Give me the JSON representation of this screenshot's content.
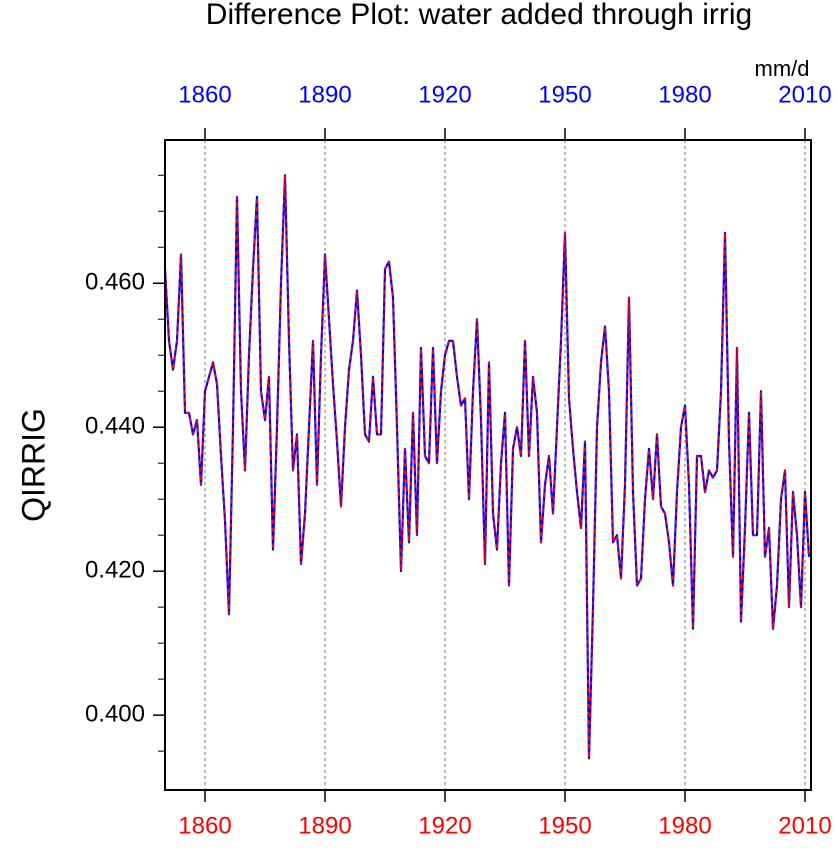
{
  "chart_data": {
    "type": "line",
    "title": "Difference Plot: water added through irrig",
    "units": "mm/d",
    "ylabel": "QIRRIG",
    "x": [
      1850,
      1851,
      1852,
      1853,
      1854,
      1855,
      1856,
      1857,
      1858,
      1859,
      1860,
      1861,
      1862,
      1863,
      1864,
      1865,
      1866,
      1867,
      1868,
      1869,
      1870,
      1871,
      1872,
      1873,
      1874,
      1875,
      1876,
      1877,
      1878,
      1879,
      1880,
      1881,
      1882,
      1883,
      1884,
      1885,
      1886,
      1887,
      1888,
      1889,
      1890,
      1891,
      1892,
      1893,
      1894,
      1895,
      1896,
      1897,
      1898,
      1899,
      1900,
      1901,
      1902,
      1903,
      1904,
      1905,
      1906,
      1907,
      1908,
      1909,
      1910,
      1911,
      1912,
      1913,
      1914,
      1915,
      1916,
      1917,
      1918,
      1919,
      1920,
      1921,
      1922,
      1923,
      1924,
      1925,
      1926,
      1927,
      1928,
      1929,
      1930,
      1931,
      1932,
      1933,
      1934,
      1935,
      1936,
      1937,
      1938,
      1939,
      1940,
      1941,
      1942,
      1943,
      1944,
      1945,
      1946,
      1947,
      1948,
      1949,
      1950,
      1951,
      1952,
      1953,
      1954,
      1955,
      1956,
      1957,
      1958,
      1959,
      1960,
      1961,
      1962,
      1963,
      1964,
      1965,
      1966,
      1967,
      1968,
      1969,
      1970,
      1971,
      1972,
      1973,
      1974,
      1975,
      1976,
      1977,
      1978,
      1979,
      1980,
      1981,
      1982,
      1983,
      1984,
      1985,
      1986,
      1987,
      1988,
      1989,
      1990,
      1991,
      1992,
      1993,
      1994,
      1995,
      1996,
      1997,
      1998,
      1999,
      2000,
      2001,
      2002,
      2003,
      2004,
      2005,
      2006,
      2007,
      2008,
      2009,
      2010,
      2011
    ],
    "series": [
      {
        "color": "#0000ff",
        "values": [
          0.462,
          0.452,
          0.448,
          0.452,
          0.464,
          0.442,
          0.442,
          0.439,
          0.441,
          0.432,
          0.445,
          0.447,
          0.449,
          0.446,
          0.436,
          0.427,
          0.414,
          0.44,
          0.472,
          0.445,
          0.434,
          0.45,
          0.462,
          0.472,
          0.445,
          0.441,
          0.447,
          0.423,
          0.44,
          0.46,
          0.475,
          0.452,
          0.434,
          0.439,
          0.421,
          0.428,
          0.44,
          0.452,
          0.432,
          0.45,
          0.464,
          0.455,
          0.446,
          0.438,
          0.429,
          0.44,
          0.448,
          0.452,
          0.459,
          0.45,
          0.439,
          0.438,
          0.447,
          0.439,
          0.439,
          0.462,
          0.463,
          0.458,
          0.44,
          0.42,
          0.437,
          0.424,
          0.442,
          0.425,
          0.451,
          0.436,
          0.435,
          0.451,
          0.435,
          0.445,
          0.45,
          0.452,
          0.452,
          0.447,
          0.443,
          0.444,
          0.43,
          0.445,
          0.455,
          0.441,
          0.421,
          0.449,
          0.428,
          0.423,
          0.435,
          0.442,
          0.418,
          0.437,
          0.44,
          0.436,
          0.452,
          0.436,
          0.447,
          0.442,
          0.424,
          0.432,
          0.436,
          0.428,
          0.44,
          0.452,
          0.467,
          0.444,
          0.437,
          0.431,
          0.426,
          0.438,
          0.394,
          0.415,
          0.44,
          0.449,
          0.454,
          0.445,
          0.424,
          0.425,
          0.419,
          0.432,
          0.458,
          0.431,
          0.418,
          0.419,
          0.43,
          0.437,
          0.43,
          0.439,
          0.429,
          0.428,
          0.424,
          0.418,
          0.431,
          0.44,
          0.443,
          0.432,
          0.412,
          0.436,
          0.436,
          0.431,
          0.434,
          0.433,
          0.434,
          0.445,
          0.467,
          0.438,
          0.422,
          0.451,
          0.413,
          0.426,
          0.442,
          0.425,
          0.425,
          0.445,
          0.422,
          0.426,
          0.412,
          0.418,
          0.43,
          0.434,
          0.415,
          0.431,
          0.425,
          0.415,
          0.431,
          0.422
        ]
      },
      {
        "color": "#ff0000",
        "dash": true,
        "values": [
          0.462,
          0.452,
          0.448,
          0.452,
          0.464,
          0.442,
          0.442,
          0.439,
          0.441,
          0.432,
          0.445,
          0.447,
          0.449,
          0.446,
          0.436,
          0.427,
          0.414,
          0.44,
          0.472,
          0.445,
          0.434,
          0.45,
          0.462,
          0.472,
          0.445,
          0.441,
          0.447,
          0.423,
          0.44,
          0.46,
          0.475,
          0.452,
          0.434,
          0.439,
          0.421,
          0.428,
          0.44,
          0.452,
          0.432,
          0.45,
          0.464,
          0.455,
          0.446,
          0.438,
          0.429,
          0.44,
          0.448,
          0.452,
          0.459,
          0.45,
          0.439,
          0.438,
          0.447,
          0.439,
          0.439,
          0.462,
          0.463,
          0.458,
          0.44,
          0.42,
          0.437,
          0.424,
          0.442,
          0.425,
          0.451,
          0.436,
          0.435,
          0.451,
          0.435,
          0.445,
          0.45,
          0.452,
          0.452,
          0.447,
          0.443,
          0.444,
          0.43,
          0.445,
          0.455,
          0.441,
          0.421,
          0.449,
          0.428,
          0.423,
          0.435,
          0.442,
          0.418,
          0.437,
          0.44,
          0.436,
          0.452,
          0.436,
          0.447,
          0.442,
          0.424,
          0.432,
          0.436,
          0.428,
          0.44,
          0.452,
          0.467,
          0.444,
          0.437,
          0.431,
          0.426,
          0.438,
          0.394,
          0.415,
          0.44,
          0.449,
          0.454,
          0.445,
          0.424,
          0.425,
          0.419,
          0.432,
          0.458,
          0.431,
          0.418,
          0.419,
          0.43,
          0.437,
          0.43,
          0.439,
          0.429,
          0.428,
          0.424,
          0.418,
          0.431,
          0.44,
          0.443,
          0.432,
          0.412,
          0.436,
          0.436,
          0.431,
          0.434,
          0.433,
          0.434,
          0.445,
          0.467,
          0.438,
          0.422,
          0.451,
          0.413,
          0.426,
          0.442,
          0.425,
          0.425,
          0.445,
          0.422,
          0.426,
          0.412,
          0.418,
          0.43,
          0.434,
          0.415,
          0.431,
          0.425,
          0.415,
          0.431,
          0.422
        ]
      }
    ],
    "xlim": [
      1850,
      2011.5
    ],
    "xticks": [
      1860,
      1890,
      1920,
      1950,
      1980,
      2010
    ],
    "xtick_color": "#ff0000",
    "x2tick_color": "#0000ff",
    "ylim": [
      0.3896,
      0.4799
    ],
    "yticks": [
      {
        "value": 0.4,
        "label": "0.400"
      },
      {
        "value": 0.42,
        "label": "0.420"
      },
      {
        "value": 0.44,
        "label": "0.440"
      },
      {
        "value": 0.46,
        "label": "0.460"
      }
    ],
    "yminorticks": [
      0.395,
      0.405,
      0.41,
      0.415,
      0.425,
      0.43,
      0.435,
      0.445,
      0.45,
      0.455,
      0.465,
      0.47,
      0.475
    ],
    "grid": "x"
  }
}
